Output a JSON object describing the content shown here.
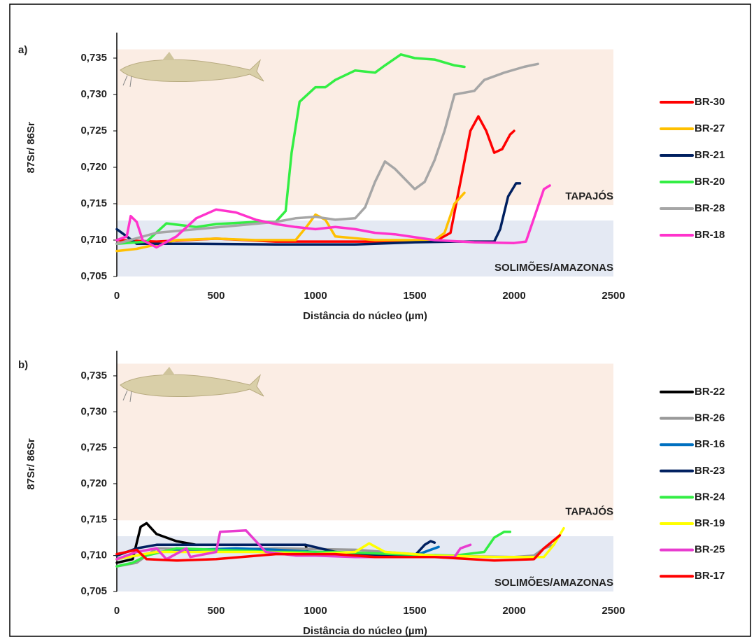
{
  "chart_data": [
    {
      "type": "line",
      "panel_label": "a)",
      "ylabel": "87Sr/ 86Sr",
      "xlabel": "Distância do núcleo (µm)",
      "xlim": [
        0,
        2500
      ],
      "xticks": [
        0,
        500,
        1000,
        1500,
        2000,
        2500
      ],
      "ylim": [
        0.705,
        0.7385
      ],
      "yticks": [
        {
          "value": 0.705,
          "label": "0,705"
        },
        {
          "value": 0.71,
          "label": "0,710"
        },
        {
          "value": 0.715,
          "label": "0,715"
        },
        {
          "value": 0.72,
          "label": "0,720"
        },
        {
          "value": 0.725,
          "label": "0,725"
        },
        {
          "value": 0.73,
          "label": "0,730"
        },
        {
          "value": 0.735,
          "label": "0,735"
        }
      ],
      "bands": [
        {
          "label": "TAPAJÓS",
          "from": 0.7148,
          "to": 0.7362,
          "color": "#fbede4"
        },
        {
          "label": "SOLIMÕES/AMAZONAS",
          "from": 0.705,
          "to": 0.7127,
          "color": "#e4e9f3"
        }
      ],
      "series": [
        {
          "name": "BR-30",
          "color": "#ff0000",
          "x": [
            0,
            200,
            500,
            800,
            1000,
            1300,
            1600,
            1680,
            1730,
            1780,
            1820,
            1860,
            1900,
            1940,
            1980,
            2000
          ],
          "values": [
            0.71,
            0.7098,
            0.7102,
            0.7098,
            0.7098,
            0.7098,
            0.7098,
            0.711,
            0.718,
            0.725,
            0.727,
            0.725,
            0.722,
            0.7225,
            0.7245,
            0.725
          ]
        },
        {
          "name": "BR-27",
          "color": "#ffc000",
          "x": [
            0,
            100,
            300,
            500,
            700,
            900,
            960,
            1000,
            1050,
            1100,
            1300,
            1600,
            1650,
            1700,
            1750
          ],
          "values": [
            0.7085,
            0.7088,
            0.71,
            0.7102,
            0.71,
            0.71,
            0.712,
            0.7135,
            0.7128,
            0.7105,
            0.71,
            0.71,
            0.711,
            0.715,
            0.7165
          ]
        },
        {
          "name": "BR-21",
          "color": "#002060",
          "x": [
            0,
            50,
            100,
            400,
            800,
            1200,
            1500,
            1700,
            1900,
            1930,
            1970,
            2010,
            2030
          ],
          "values": [
            0.7115,
            0.7105,
            0.7095,
            0.7095,
            0.7094,
            0.7094,
            0.7097,
            0.7098,
            0.7098,
            0.7115,
            0.716,
            0.7178,
            0.7178
          ]
        },
        {
          "name": "BR-20",
          "color": "#33ee44",
          "x": [
            0,
            150,
            250,
            400,
            500,
            700,
            800,
            850,
            880,
            920,
            1000,
            1050,
            1100,
            1200,
            1300,
            1350,
            1430,
            1500,
            1600,
            1700,
            1750
          ],
          "values": [
            0.7095,
            0.7098,
            0.7123,
            0.7118,
            0.7122,
            0.7125,
            0.7125,
            0.714,
            0.722,
            0.729,
            0.731,
            0.731,
            0.732,
            0.7333,
            0.733,
            0.734,
            0.7355,
            0.735,
            0.7348,
            0.734,
            0.7338
          ]
        },
        {
          "name": "BR-28",
          "color": "#a6a6a6",
          "x": [
            0,
            200,
            400,
            600,
            800,
            900,
            1000,
            1100,
            1200,
            1250,
            1300,
            1350,
            1400,
            1500,
            1550,
            1600,
            1650,
            1700,
            1800,
            1850,
            1950,
            2050,
            2120
          ],
          "values": [
            0.7095,
            0.711,
            0.7115,
            0.712,
            0.7125,
            0.713,
            0.7132,
            0.7128,
            0.713,
            0.7145,
            0.718,
            0.7208,
            0.7198,
            0.717,
            0.718,
            0.721,
            0.725,
            0.73,
            0.7305,
            0.732,
            0.733,
            0.7338,
            0.7342
          ]
        },
        {
          "name": "BR-18",
          "color": "#ff33cc",
          "x": [
            0,
            50,
            70,
            100,
            130,
            200,
            300,
            400,
            500,
            600,
            700,
            800,
            900,
            1000,
            1100,
            1200,
            1300,
            1400,
            1600,
            1800,
            2000,
            2060,
            2100,
            2150,
            2180
          ],
          "values": [
            0.71,
            0.7105,
            0.7133,
            0.7125,
            0.71,
            0.709,
            0.7105,
            0.713,
            0.7142,
            0.7138,
            0.7128,
            0.7122,
            0.7118,
            0.7115,
            0.7118,
            0.7115,
            0.711,
            0.7108,
            0.71,
            0.7097,
            0.7096,
            0.7098,
            0.713,
            0.717,
            0.7175
          ]
        }
      ]
    },
    {
      "type": "line",
      "panel_label": "b)",
      "ylabel": "87Sr/ 86Sr",
      "xlabel": "Distância do núcleo (µm)",
      "xlim": [
        0,
        2500
      ],
      "xticks": [
        0,
        500,
        1000,
        1500,
        2000,
        2500
      ],
      "ylim": [
        0.705,
        0.7385
      ],
      "yticks": [
        {
          "value": 0.705,
          "label": "0,705"
        },
        {
          "value": 0.71,
          "label": "0,710"
        },
        {
          "value": 0.715,
          "label": "0,715"
        },
        {
          "value": 0.72,
          "label": "0,720"
        },
        {
          "value": 0.725,
          "label": "0,725"
        },
        {
          "value": 0.73,
          "label": "0,730"
        },
        {
          "value": 0.735,
          "label": "0,735"
        }
      ],
      "bands": [
        {
          "label": "TAPAJÓS",
          "from": 0.7149,
          "to": 0.7367,
          "color": "#fbede4"
        },
        {
          "label": "SOLIMÕES/AMAZONAS",
          "from": 0.705,
          "to": 0.7127,
          "color": "#e4e9f3"
        }
      ],
      "series": [
        {
          "name": "BR-22",
          "color": "#000000",
          "x": [
            0,
            80,
            120,
            150,
            200,
            300,
            400,
            600,
            950,
            960
          ],
          "values": [
            0.709,
            0.7095,
            0.714,
            0.7145,
            0.713,
            0.712,
            0.7115,
            0.7115,
            0.7115,
            0.7105
          ]
        },
        {
          "name": "BR-26",
          "color": "#999999",
          "x": [
            0,
            100,
            200,
            500,
            800,
            1200,
            1600,
            2000,
            2100,
            2150,
            2200
          ],
          "values": [
            0.7085,
            0.709,
            0.711,
            0.7108,
            0.711,
            0.7108,
            0.71,
            0.7098,
            0.71,
            0.711,
            0.7115
          ]
        },
        {
          "name": "BR-16",
          "color": "#0070c0",
          "x": [
            0,
            100,
            200,
            400,
            600,
            800,
            1000,
            1200,
            1400,
            1500,
            1620
          ],
          "values": [
            0.7095,
            0.71,
            0.7105,
            0.7108,
            0.711,
            0.7108,
            0.7105,
            0.71,
            0.7098,
            0.71,
            0.7112
          ]
        },
        {
          "name": "BR-23",
          "color": "#002060",
          "x": [
            0,
            100,
            200,
            500,
            800,
            950,
            1100,
            1300,
            1500,
            1550,
            1580,
            1600
          ],
          "values": [
            0.71,
            0.711,
            0.7115,
            0.7115,
            0.7115,
            0.7115,
            0.7105,
            0.71,
            0.71,
            0.7115,
            0.712,
            0.7118
          ]
        },
        {
          "name": "BR-24",
          "color": "#33ee44",
          "x": [
            0,
            80,
            150,
            300,
            500,
            800,
            1100,
            1400,
            1700,
            1850,
            1900,
            1950,
            1980
          ],
          "values": [
            0.7085,
            0.709,
            0.71,
            0.711,
            0.7108,
            0.7105,
            0.7105,
            0.7102,
            0.71,
            0.7105,
            0.7125,
            0.7133,
            0.7133
          ]
        },
        {
          "name": "BR-19",
          "color": "#ffff00",
          "x": [
            0,
            200,
            400,
            700,
            1000,
            1200,
            1270,
            1350,
            1600,
            1900,
            2150,
            2200,
            2250
          ],
          "values": [
            0.7095,
            0.7105,
            0.7105,
            0.7105,
            0.7102,
            0.7105,
            0.7117,
            0.7105,
            0.71,
            0.7098,
            0.7098,
            0.7115,
            0.7138
          ]
        },
        {
          "name": "BR-25",
          "color": "#e83ccf",
          "x": [
            0,
            100,
            200,
            250,
            350,
            370,
            500,
            520,
            650,
            700,
            750,
            900,
            1000,
            1200,
            1500,
            1700,
            1730,
            1780
          ],
          "values": [
            0.7095,
            0.7105,
            0.711,
            0.7095,
            0.711,
            0.7098,
            0.7105,
            0.7133,
            0.7135,
            0.712,
            0.7105,
            0.71,
            0.71,
            0.7098,
            0.7098,
            0.7098,
            0.711,
            0.7115
          ]
        },
        {
          "name": "BR-17",
          "color": "#ff0000",
          "x": [
            0,
            100,
            150,
            300,
            500,
            800,
            1100,
            1300,
            1600,
            1900,
            2100,
            2150,
            2230
          ],
          "values": [
            0.7102,
            0.7108,
            0.7095,
            0.7093,
            0.7095,
            0.7102,
            0.7102,
            0.7098,
            0.7098,
            0.7093,
            0.7095,
            0.711,
            0.7128
          ]
        }
      ]
    }
  ]
}
